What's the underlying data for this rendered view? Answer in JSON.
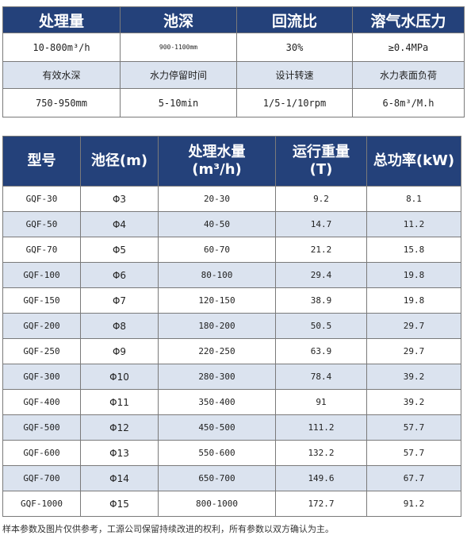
{
  "params": {
    "headers": [
      "处理量",
      "池深",
      "回流比",
      "溶气水压力"
    ],
    "row1": [
      "10-800m³/h",
      "900-1100mm",
      "30%",
      "≥0.4MPa"
    ],
    "labels": [
      "有效水深",
      "水力停留时间",
      "设计转速",
      "水力表面负荷"
    ],
    "row2": [
      "750-950mm",
      "5-10min",
      "1/5-1/10rpm",
      "6-8m³/M.h"
    ]
  },
  "models": {
    "headers": [
      "型号",
      "池径(m)",
      "处理水量\n(m³/h)",
      "运行重量\n(T)",
      "总功率(kW)"
    ],
    "rows": [
      [
        "GQF-30",
        "Φ3",
        "20-30",
        "9.2",
        "8.1"
      ],
      [
        "GQF-50",
        "Φ4",
        "40-50",
        "14.7",
        "11.2"
      ],
      [
        "GQF-70",
        "Φ5",
        "60-70",
        "21.2",
        "15.8"
      ],
      [
        "GQF-100",
        "Φ6",
        "80-100",
        "29.4",
        "19.8"
      ],
      [
        "GQF-150",
        "Φ7",
        "120-150",
        "38.9",
        "19.8"
      ],
      [
        "GQF-200",
        "Φ8",
        "180-200",
        "50.5",
        "29.7"
      ],
      [
        "GQF-250",
        "Φ9",
        "220-250",
        "63.9",
        "29.7"
      ],
      [
        "GQF-300",
        "Φ10",
        "280-300",
        "78.4",
        "39.2"
      ],
      [
        "GQF-400",
        "Φ11",
        "350-400",
        "91",
        "39.2"
      ],
      [
        "GQF-500",
        "Φ12",
        "450-500",
        "111.2",
        "57.7"
      ],
      [
        "GQF-600",
        "Φ13",
        "550-600",
        "132.2",
        "57.7"
      ],
      [
        "GQF-700",
        "Φ14",
        "650-700",
        "149.6",
        "67.7"
      ],
      [
        "GQF-1000",
        "Φ15",
        "800-1000",
        "172.7",
        "91.2"
      ]
    ]
  },
  "footnote": "样本参数及图片仅供参考，工源公司保留持续改进的权利，所有参数以双方确认为主。"
}
